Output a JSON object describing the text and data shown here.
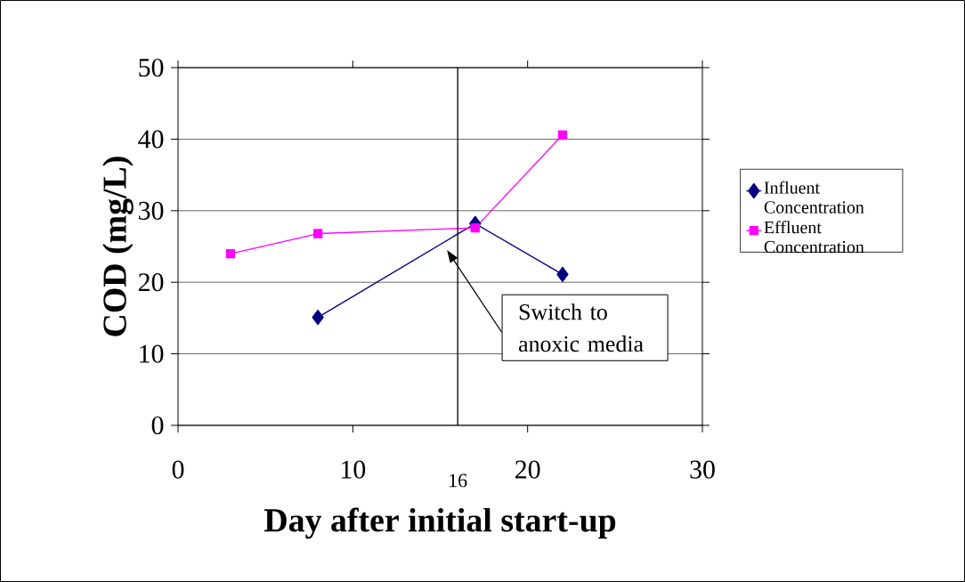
{
  "chart_data": {
    "type": "line",
    "xlabel": "Day after initial start-up",
    "ylabel": "COD (mg/L)",
    "xlim": [
      0,
      30
    ],
    "ylim": [
      0,
      50
    ],
    "xticks": [
      0,
      10,
      20,
      30
    ],
    "yticks": [
      0,
      10,
      20,
      30,
      40,
      50
    ],
    "grid": "y",
    "legend": "right",
    "series": [
      {
        "name": "Influent Concentration",
        "color": "#000080",
        "marker": "diamond",
        "x": [
          8,
          17,
          22
        ],
        "values": [
          15.1,
          28.2,
          21.1
        ]
      },
      {
        "name": "Effluent Concentration",
        "color": "#ff00ff",
        "marker": "square",
        "x": [
          3,
          8,
          17,
          22
        ],
        "values": [
          24.0,
          26.8,
          27.6,
          40.6
        ]
      }
    ],
    "ref_lines": [
      {
        "axis": "x",
        "value": 16,
        "label": "16",
        "color": "#000000"
      }
    ],
    "annotations": [
      "Switch to anoxic media"
    ]
  }
}
